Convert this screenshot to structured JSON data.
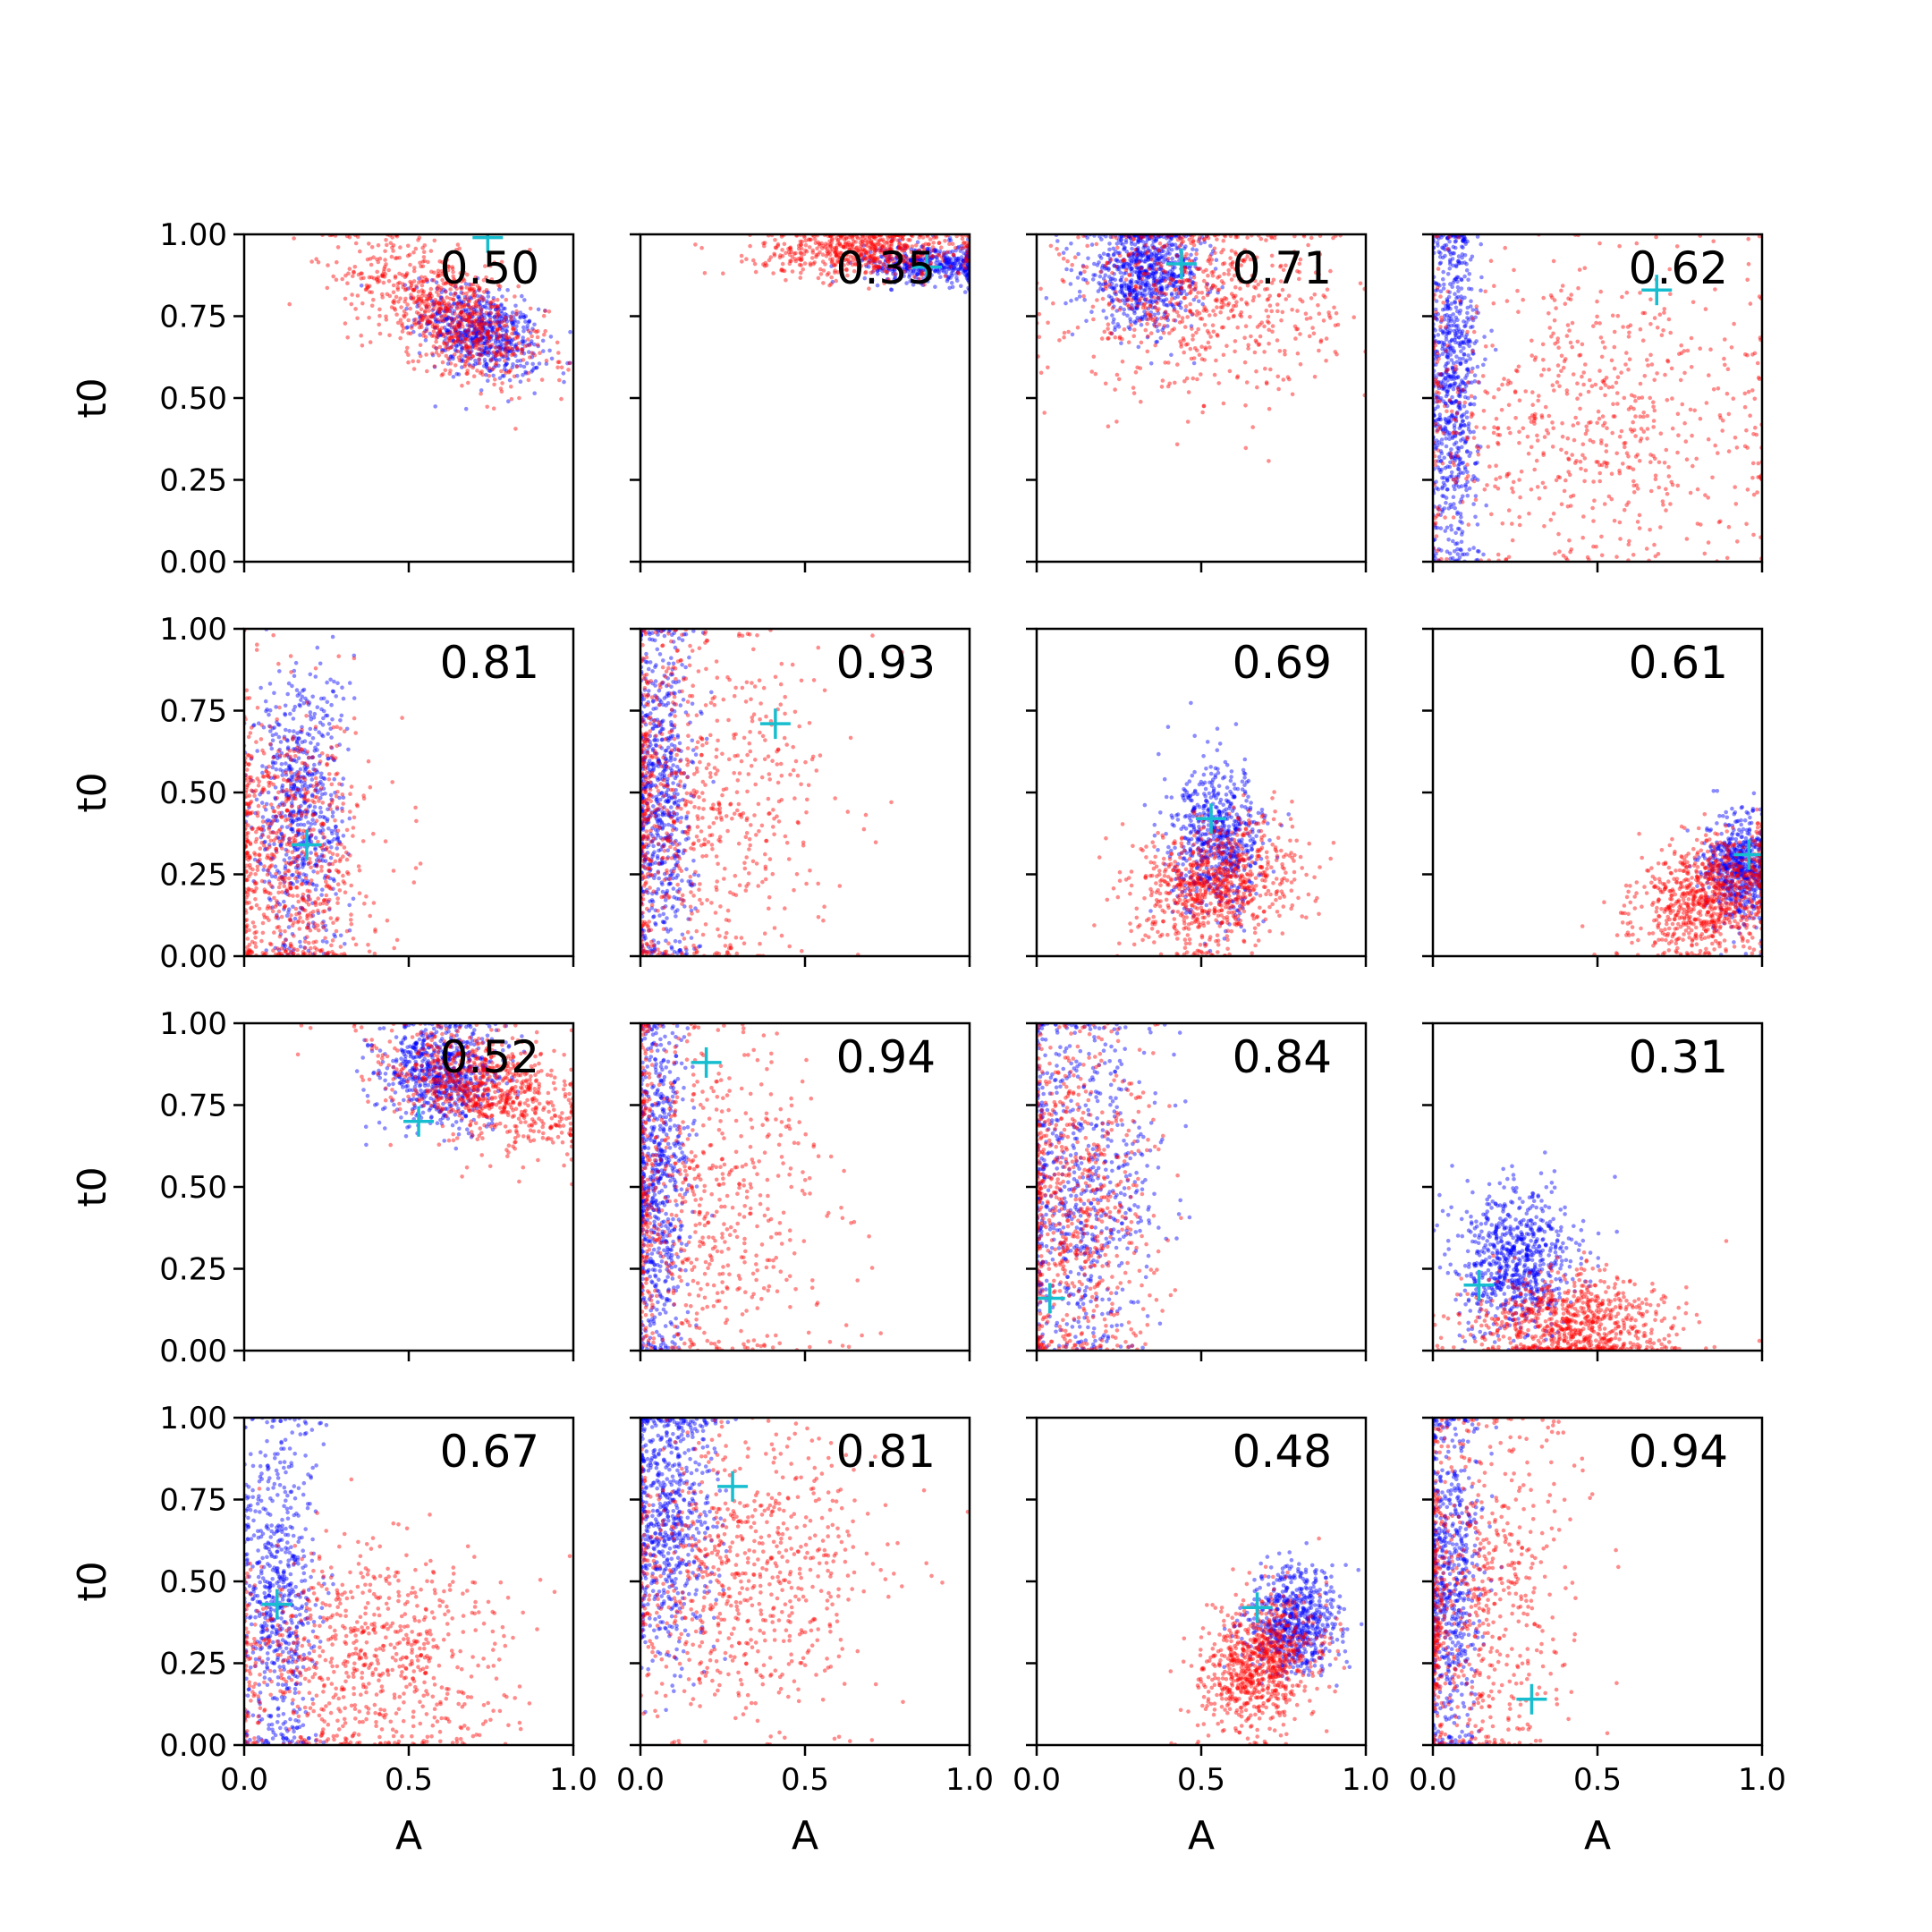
{
  "chart_data": {
    "type": "scatter",
    "layout": "4x4 grid of scatter panels with shared axes",
    "xlabel": "A",
    "ylabel": "t0",
    "xlim": [
      0.0,
      1.0
    ],
    "ylim": [
      0.0,
      1.0
    ],
    "x_ticks": [
      "0.0",
      "0.5",
      "1.0"
    ],
    "y_ticks": [
      "0.00",
      "0.25",
      "0.50",
      "0.75",
      "1.00"
    ],
    "grid": false,
    "series_colors": {
      "set_1": "#0000ff",
      "set_2": "#ff0000",
      "marker": "#17becf"
    },
    "panels": [
      {
        "label": "0.50",
        "marker": [
          0.74,
          0.99
        ],
        "red": {
          "cx": 0.62,
          "cy": 0.76,
          "sx": 0.15,
          "sy": 0.11,
          "rho": -0.6,
          "n": 800
        },
        "blue": {
          "cx": 0.72,
          "cy": 0.7,
          "sx": 0.09,
          "sy": 0.07,
          "rho": -0.4,
          "n": 650
        }
      },
      {
        "label": "0.35",
        "marker": [
          0.87,
          0.9
        ],
        "red": {
          "cx": 0.68,
          "cy": 0.95,
          "sx": 0.16,
          "sy": 0.04,
          "rho": 0.0,
          "n": 600
        },
        "blue": {
          "cx": 0.88,
          "cy": 0.91,
          "sx": 0.1,
          "sy": 0.03,
          "rho": 0.0,
          "n": 450
        }
      },
      {
        "label": "0.71",
        "marker": [
          0.44,
          0.91
        ],
        "red": {
          "cx": 0.5,
          "cy": 0.8,
          "sx": 0.2,
          "sy": 0.14,
          "rho": 0.0,
          "n": 650
        },
        "blue": {
          "cx": 0.33,
          "cy": 0.88,
          "sx": 0.09,
          "sy": 0.08,
          "rho": 0.0,
          "n": 750
        }
      },
      {
        "label": "0.62",
        "marker": [
          0.68,
          0.83
        ],
        "red": {
          "cx": 0.45,
          "cy": 0.45,
          "sx": 0.3,
          "sy": 0.25,
          "rho": 0.0,
          "n": 700
        },
        "blue": {
          "cx": 0.06,
          "cy": 0.55,
          "sx": 0.04,
          "sy": 0.28,
          "rho": 0.0,
          "n": 750
        }
      },
      {
        "label": "0.81",
        "marker": [
          0.19,
          0.34
        ],
        "red": {
          "cx": 0.14,
          "cy": 0.3,
          "sx": 0.12,
          "sy": 0.22,
          "rho": 0.0,
          "n": 750
        },
        "blue": {
          "cx": 0.17,
          "cy": 0.45,
          "sx": 0.07,
          "sy": 0.22,
          "rho": 0.0,
          "n": 650
        }
      },
      {
        "label": "0.93",
        "marker": [
          0.41,
          0.71
        ],
        "red": {
          "cx": 0.15,
          "cy": 0.45,
          "sx": 0.2,
          "sy": 0.28,
          "rho": 0.0,
          "n": 750
        },
        "blue": {
          "cx": 0.06,
          "cy": 0.5,
          "sx": 0.05,
          "sy": 0.28,
          "rho": 0.0,
          "n": 700
        }
      },
      {
        "label": "0.69",
        "marker": [
          0.53,
          0.42
        ],
        "red": {
          "cx": 0.55,
          "cy": 0.22,
          "sx": 0.12,
          "sy": 0.1,
          "rho": 0.2,
          "n": 800
        },
        "blue": {
          "cx": 0.55,
          "cy": 0.35,
          "sx": 0.07,
          "sy": 0.11,
          "rho": 0.0,
          "n": 650
        }
      },
      {
        "label": "0.61",
        "marker": [
          0.96,
          0.31
        ],
        "red": {
          "cx": 0.84,
          "cy": 0.18,
          "sx": 0.11,
          "sy": 0.09,
          "rho": 0.3,
          "n": 800
        },
        "blue": {
          "cx": 0.93,
          "cy": 0.27,
          "sx": 0.05,
          "sy": 0.08,
          "rho": 0.0,
          "n": 600
        }
      },
      {
        "label": "0.52",
        "marker": [
          0.53,
          0.7
        ],
        "red": {
          "cx": 0.72,
          "cy": 0.8,
          "sx": 0.15,
          "sy": 0.09,
          "rho": -0.4,
          "n": 800
        },
        "blue": {
          "cx": 0.6,
          "cy": 0.85,
          "sx": 0.09,
          "sy": 0.08,
          "rho": 0.0,
          "n": 700
        }
      },
      {
        "label": "0.94",
        "marker": [
          0.2,
          0.88
        ],
        "red": {
          "cx": 0.18,
          "cy": 0.45,
          "sx": 0.2,
          "sy": 0.28,
          "rho": 0.0,
          "n": 700
        },
        "blue": {
          "cx": 0.05,
          "cy": 0.5,
          "sx": 0.05,
          "sy": 0.28,
          "rho": 0.0,
          "n": 700
        }
      },
      {
        "label": "0.84",
        "marker": [
          0.04,
          0.16
        ],
        "red": {
          "cx": 0.12,
          "cy": 0.45,
          "sx": 0.12,
          "sy": 0.28,
          "rho": 0.0,
          "n": 700
        },
        "blue": {
          "cx": 0.12,
          "cy": 0.5,
          "sx": 0.12,
          "sy": 0.28,
          "rho": 0.0,
          "n": 700
        }
      },
      {
        "label": "0.31",
        "marker": [
          0.14,
          0.2
        ],
        "red": {
          "cx": 0.42,
          "cy": 0.08,
          "sx": 0.15,
          "sy": 0.08,
          "rho": 0.0,
          "n": 800
        },
        "blue": {
          "cx": 0.25,
          "cy": 0.27,
          "sx": 0.09,
          "sy": 0.11,
          "rho": 0.0,
          "n": 750
        }
      },
      {
        "label": "0.67",
        "marker": [
          0.1,
          0.43
        ],
        "red": {
          "cx": 0.35,
          "cy": 0.25,
          "sx": 0.22,
          "sy": 0.18,
          "rho": 0.0,
          "n": 800
        },
        "blue": {
          "cx": 0.1,
          "cy": 0.45,
          "sx": 0.06,
          "sy": 0.28,
          "rho": 0.0,
          "n": 650
        }
      },
      {
        "label": "0.81",
        "marker": [
          0.28,
          0.79
        ],
        "red": {
          "cx": 0.3,
          "cy": 0.52,
          "sx": 0.2,
          "sy": 0.22,
          "rho": 0.0,
          "n": 750
        },
        "blue": {
          "cx": 0.08,
          "cy": 0.68,
          "sx": 0.07,
          "sy": 0.22,
          "rho": 0.0,
          "n": 700
        }
      },
      {
        "label": "0.48",
        "marker": [
          0.67,
          0.42
        ],
        "red": {
          "cx": 0.68,
          "cy": 0.25,
          "sx": 0.09,
          "sy": 0.1,
          "rho": 0.3,
          "n": 800
        },
        "blue": {
          "cx": 0.78,
          "cy": 0.38,
          "sx": 0.07,
          "sy": 0.08,
          "rho": 0.0,
          "n": 650
        }
      },
      {
        "label": "0.94",
        "marker": [
          0.3,
          0.14
        ],
        "red": {
          "cx": 0.12,
          "cy": 0.45,
          "sx": 0.15,
          "sy": 0.28,
          "rho": 0.0,
          "n": 700
        },
        "blue": {
          "cx": 0.05,
          "cy": 0.5,
          "sx": 0.05,
          "sy": 0.28,
          "rho": 0.0,
          "n": 650
        }
      }
    ]
  }
}
